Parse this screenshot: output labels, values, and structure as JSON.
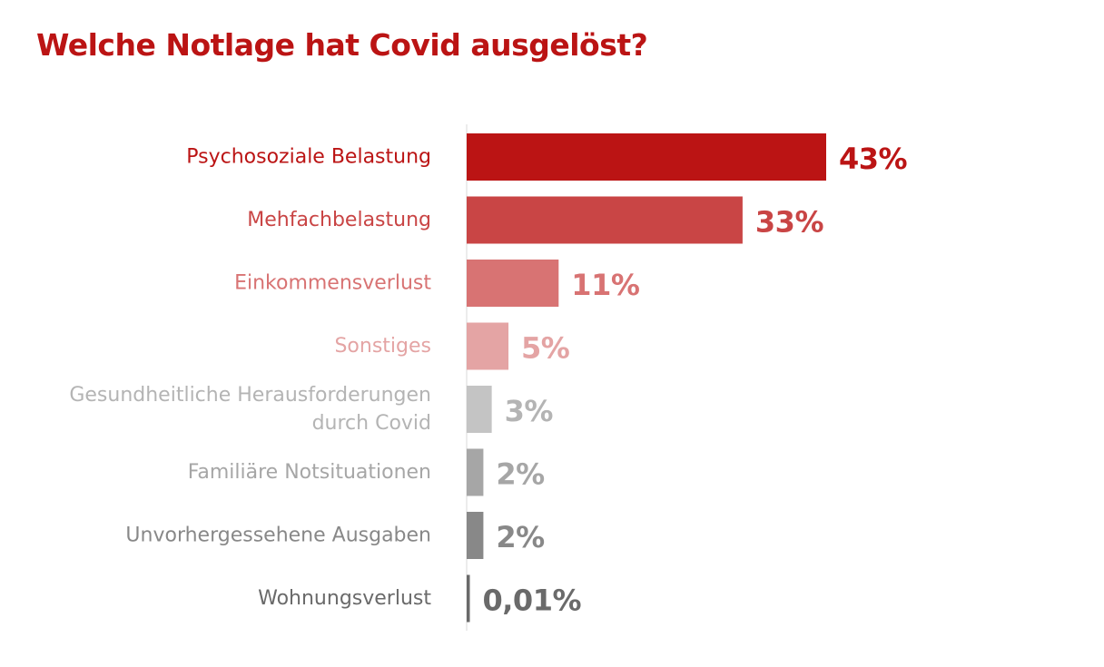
{
  "chart_data": {
    "type": "bar",
    "orientation": "horizontal",
    "title": "Welche Notlage hat Covid ausgelöst?",
    "xlabel": "",
    "ylabel": "",
    "grid": false,
    "legend": "none",
    "xlim": [
      0,
      43
    ],
    "categories": [
      [
        "Psychosoziale Belastung"
      ],
      [
        "Mehfachbelastung"
      ],
      [
        "Einkommensverlust"
      ],
      [
        "Sonstiges"
      ],
      [
        "Gesundheitliche Herausforderungen",
        "durch Covid"
      ],
      [
        "Familiäre Notsituationen"
      ],
      [
        "Unvorhergessehene Ausgaben"
      ],
      [
        "Wohnungsverlust"
      ]
    ],
    "values": [
      43,
      33,
      11,
      5,
      3,
      2,
      2,
      0.01
    ],
    "value_labels": [
      "43%",
      "33%",
      "11%",
      "5%",
      "3%",
      "2%",
      "2%",
      "0,01%"
    ],
    "bar_colors": [
      "#bb1414",
      "#c94545",
      "#d87373",
      "#e4a4a4",
      "#c4c4c4",
      "#a6a6a6",
      "#888888",
      "#6a6a6a"
    ],
    "label_colors": [
      "#bb1414",
      "#c94545",
      "#d87373",
      "#e4a4a4",
      "#b4b4b4",
      "#a6a6a6",
      "#888888",
      "#6a6a6a"
    ],
    "value_colors": [
      "#bb1414",
      "#c94545",
      "#d87373",
      "#e4a4a4",
      "#b4b4b4",
      "#a6a6a6",
      "#888888",
      "#6a6a6a"
    ],
    "title_color": "#bb1414",
    "axis_color": "#d9d9d9"
  }
}
